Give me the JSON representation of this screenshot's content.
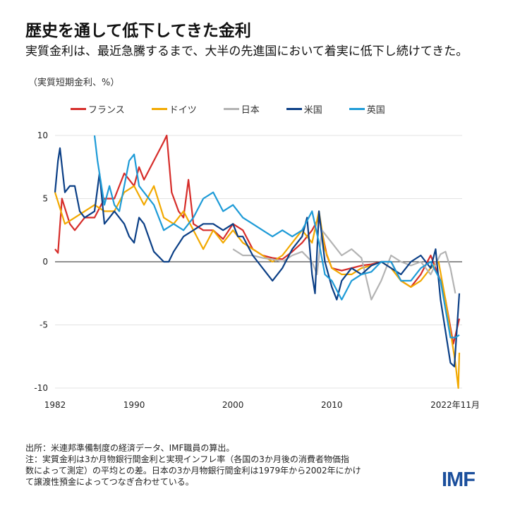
{
  "title": "歴史を通して低下してきた金利",
  "subtitle": "実質金利は、最近急騰するまで、大半の先進国において着実に低下し続けてきた。",
  "unit": "（実質短期金利、%）",
  "source_lines": [
    "出所：米連邦準備制度の経済データ、IMF職員の算出。",
    "注：実質金利は3か月物銀行間金利と実現インフレ率（各国の3か月後の消費者物価指",
    "数によって測定）の平均との差。日本の3か月物銀行間金利は1979年から2002年にかけ",
    "て譲渡性預金によってつなぎ合わせている。"
  ],
  "logo": "IMF",
  "chart_data": {
    "type": "line",
    "title": "",
    "xlim": [
      1982,
      2022.9
    ],
    "ylim": [
      -10,
      10
    ],
    "yticks": [
      10,
      5,
      0,
      -5,
      -10
    ],
    "ytick_labels": [
      "10",
      "5",
      "0",
      "-5",
      "-10"
    ],
    "xticks": [
      1982,
      1990,
      2000,
      2010,
      2022.9
    ],
    "xtick_labels": [
      "1982",
      "1990",
      "2000",
      "2010",
      "2022年11月"
    ],
    "grid": true,
    "legend_placement": "top",
    "series": [
      {
        "name": "フランス",
        "color": "#d62d2a",
        "points": [
          [
            1982,
            1
          ],
          [
            1982.3,
            0.7
          ],
          [
            1982.7,
            5
          ],
          [
            1983.5,
            3
          ],
          [
            1984,
            2.5
          ],
          [
            1985,
            3.5
          ],
          [
            1986,
            3.5
          ],
          [
            1987,
            5
          ],
          [
            1988,
            5
          ],
          [
            1989,
            7
          ],
          [
            1990,
            6
          ],
          [
            1990.5,
            7.5
          ],
          [
            1991,
            6.5
          ],
          [
            1992,
            8
          ],
          [
            1993,
            9.5
          ],
          [
            1993.3,
            10
          ],
          [
            1993.8,
            5.5
          ],
          [
            1994.5,
            4
          ],
          [
            1995,
            3.5
          ],
          [
            1995.5,
            6.5
          ],
          [
            1996,
            3
          ],
          [
            1997,
            2.5
          ],
          [
            1998,
            2.5
          ],
          [
            1999,
            1.8
          ],
          [
            2000,
            3
          ],
          [
            2001,
            2.5
          ],
          [
            2002,
            1
          ],
          [
            2003,
            0.5
          ],
          [
            2004,
            0.3
          ],
          [
            2005,
            0.2
          ],
          [
            2006,
            0.8
          ],
          [
            2007,
            1.5
          ],
          [
            2008,
            2.5
          ],
          [
            2008.7,
            3.5
          ],
          [
            2009.5,
            0.5
          ],
          [
            2010,
            -0.5
          ],
          [
            2011,
            -0.7
          ],
          [
            2012,
            -0.5
          ],
          [
            2013,
            -0.3
          ],
          [
            2014,
            -0.2
          ],
          [
            2015,
            0
          ],
          [
            2016,
            0
          ],
          [
            2017,
            -1.5
          ],
          [
            2018,
            -2
          ],
          [
            2019,
            -1
          ],
          [
            2020,
            0.5
          ],
          [
            2021,
            -1.5
          ],
          [
            2021.5,
            -3
          ],
          [
            2022.3,
            -6.5
          ],
          [
            2022.9,
            -4.5
          ]
        ]
      },
      {
        "name": "ドイツ",
        "color": "#f2a900",
        "points": [
          [
            1982,
            5.5
          ],
          [
            1983,
            3
          ],
          [
            1984,
            3.5
          ],
          [
            1985,
            4
          ],
          [
            1986,
            4.5
          ],
          [
            1987,
            4
          ],
          [
            1988,
            4
          ],
          [
            1989,
            5.5
          ],
          [
            1990,
            6
          ],
          [
            1991,
            4.5
          ],
          [
            1992,
            6
          ],
          [
            1993,
            3.5
          ],
          [
            1994,
            3
          ],
          [
            1995,
            4
          ],
          [
            1996,
            2.5
          ],
          [
            1997,
            1
          ],
          [
            1998,
            2.5
          ],
          [
            1999,
            1.5
          ],
          [
            2000,
            2.5
          ],
          [
            2001,
            1.5
          ],
          [
            2002,
            1
          ],
          [
            2003,
            0.5
          ],
          [
            2004,
            0
          ],
          [
            2005,
            0.5
          ],
          [
            2006,
            1.5
          ],
          [
            2007,
            2.5
          ],
          [
            2008,
            1.5
          ],
          [
            2008.7,
            4
          ],
          [
            2009.3,
            1
          ],
          [
            2010,
            -0.5
          ],
          [
            2011,
            -1
          ],
          [
            2012,
            -1
          ],
          [
            2013,
            -0.5
          ],
          [
            2014,
            -0.3
          ],
          [
            2015,
            0
          ],
          [
            2016,
            -0.5
          ],
          [
            2017,
            -1.5
          ],
          [
            2018,
            -2
          ],
          [
            2019,
            -1.5
          ],
          [
            2020,
            -0.5
          ],
          [
            2020.8,
            0
          ],
          [
            2021.5,
            -3
          ],
          [
            2022.5,
            -8
          ],
          [
            2022.8,
            -10
          ],
          [
            2022.9,
            -7.2
          ]
        ]
      },
      {
        "name": "日本",
        "color": "#b3b3b3",
        "points": [
          [
            2000,
            1
          ],
          [
            2001,
            0.5
          ],
          [
            2002,
            0.5
          ],
          [
            2003,
            0.3
          ],
          [
            2004,
            0.2
          ],
          [
            2005,
            0
          ],
          [
            2006,
            0.5
          ],
          [
            2007,
            0.8
          ],
          [
            2008,
            0
          ],
          [
            2008.5,
            -1
          ],
          [
            2009,
            2.5
          ],
          [
            2010,
            1.5
          ],
          [
            2011,
            0.5
          ],
          [
            2012,
            1
          ],
          [
            2013,
            0.3
          ],
          [
            2014,
            -3
          ],
          [
            2015,
            -1.5
          ],
          [
            2016,
            0.5
          ],
          [
            2017,
            0
          ],
          [
            2018,
            -0.3
          ],
          [
            2019,
            0
          ],
          [
            2020,
            -1
          ],
          [
            2021,
            0.6
          ],
          [
            2021.5,
            0.8
          ],
          [
            2022,
            -0.5
          ],
          [
            2022.5,
            -2.5
          ]
        ]
      },
      {
        "name": "米国",
        "color": "#0b3f86",
        "points": [
          [
            1982,
            5.5
          ],
          [
            1982.3,
            8
          ],
          [
            1982.5,
            9
          ],
          [
            1983,
            5.5
          ],
          [
            1983.5,
            6
          ],
          [
            1984,
            6
          ],
          [
            1984.5,
            4
          ],
          [
            1985,
            3.5
          ],
          [
            1986,
            4
          ],
          [
            1986.5,
            7
          ],
          [
            1987,
            3
          ],
          [
            1987.5,
            3.5
          ],
          [
            1988,
            4
          ],
          [
            1989,
            3
          ],
          [
            1989.5,
            2
          ],
          [
            1990,
            1.5
          ],
          [
            1990.5,
            3.5
          ],
          [
            1991,
            3
          ],
          [
            1992,
            0.8
          ],
          [
            1993,
            0
          ],
          [
            1993.5,
            0
          ],
          [
            1994,
            0.8
          ],
          [
            1995,
            2
          ],
          [
            1996,
            2.5
          ],
          [
            1997,
            3
          ],
          [
            1998,
            3
          ],
          [
            1999,
            2.5
          ],
          [
            2000,
            3
          ],
          [
            2000.5,
            2
          ],
          [
            2001,
            2
          ],
          [
            2002,
            0.5
          ],
          [
            2003,
            -0.5
          ],
          [
            2004,
            -1.5
          ],
          [
            2005,
            -0.5
          ],
          [
            2006,
            1
          ],
          [
            2007,
            2
          ],
          [
            2007.5,
            3.5
          ],
          [
            2008,
            -1
          ],
          [
            2008.3,
            -2.5
          ],
          [
            2008.7,
            4
          ],
          [
            2009.3,
            0
          ],
          [
            2010,
            -2
          ],
          [
            2010.5,
            -3
          ],
          [
            2011,
            -1.5
          ],
          [
            2012,
            -0.5
          ],
          [
            2013,
            -1
          ],
          [
            2014,
            -0.3
          ],
          [
            2015,
            0
          ],
          [
            2016,
            -0.5
          ],
          [
            2017,
            -1
          ],
          [
            2018,
            0
          ],
          [
            2019,
            0.5
          ],
          [
            2020,
            -0.5
          ],
          [
            2020.5,
            1
          ],
          [
            2021,
            -3
          ],
          [
            2022,
            -8
          ],
          [
            2022.4,
            -8.3
          ],
          [
            2022.9,
            -2.5
          ]
        ]
      },
      {
        "name": "英国",
        "color": "#1e9bd7",
        "points": [
          [
            1986,
            10
          ],
          [
            1986.3,
            8
          ],
          [
            1987,
            4.5
          ],
          [
            1987.5,
            6
          ],
          [
            1988,
            4.5
          ],
          [
            1988.5,
            4
          ],
          [
            1989,
            6
          ],
          [
            1989.5,
            8
          ],
          [
            1990,
            8.5
          ],
          [
            1990.5,
            6
          ],
          [
            1991,
            5.5
          ],
          [
            1992,
            4.5
          ],
          [
            1993,
            2.5
          ],
          [
            1994,
            3
          ],
          [
            1995,
            2.5
          ],
          [
            1996,
            3.5
          ],
          [
            1997,
            5
          ],
          [
            1998,
            5.5
          ],
          [
            1999,
            4
          ],
          [
            2000,
            4.5
          ],
          [
            2001,
            3.5
          ],
          [
            2002,
            3
          ],
          [
            2003,
            2.5
          ],
          [
            2004,
            2
          ],
          [
            2005,
            2.5
          ],
          [
            2006,
            2
          ],
          [
            2007,
            2.5
          ],
          [
            2008,
            4
          ],
          [
            2008.7,
            1.5
          ],
          [
            2009.3,
            -1
          ],
          [
            2010,
            -1.5
          ],
          [
            2011,
            -3
          ],
          [
            2012,
            -1.5
          ],
          [
            2013,
            -1
          ],
          [
            2014,
            -0.8
          ],
          [
            2015,
            0
          ],
          [
            2016,
            0
          ],
          [
            2017,
            -1.5
          ],
          [
            2018,
            -1.5
          ],
          [
            2019,
            -0.5
          ],
          [
            2020,
            0
          ],
          [
            2021,
            -1.5
          ],
          [
            2022,
            -6
          ],
          [
            2022.5,
            -6
          ],
          [
            2022.9,
            -5.8
          ]
        ]
      }
    ]
  }
}
